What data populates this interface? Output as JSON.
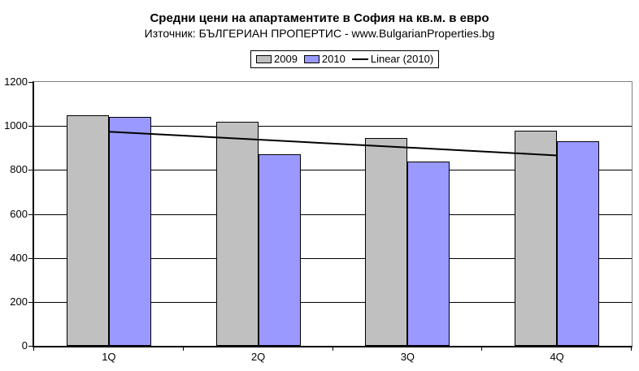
{
  "title": "Средни цени на апартаментите в София на кв.м. в евро",
  "subtitle": "Източник: БЪЛГЕРИАН ПРОПЕРТИС - www.BulgarianProperties.bg",
  "legend": {
    "items": [
      {
        "label": "2009",
        "swatch": "box",
        "color": "#C0C0C0"
      },
      {
        "label": "2010",
        "swatch": "box",
        "color": "#9999FF"
      },
      {
        "label": "Linear (2010)",
        "swatch": "line",
        "color": "#000000"
      }
    ]
  },
  "chart_data": {
    "type": "bar",
    "categories": [
      "1Q",
      "2Q",
      "3Q",
      "4Q"
    ],
    "series": [
      {
        "name": "2009",
        "color": "#C0C0C0",
        "values": [
          1050,
          1020,
          945,
          980
        ]
      },
      {
        "name": "2010",
        "color": "#9999FF",
        "values": [
          1040,
          870,
          840,
          930
        ]
      }
    ],
    "trendline": {
      "name": "Linear (2010)",
      "of_series": "2010",
      "color": "#000000",
      "start_value": 974,
      "end_value": 866
    },
    "title": "Средни цени на апартаментите в София на кв.м. в евро",
    "xlabel": "",
    "ylabel": "",
    "ylim": [
      0,
      1200
    ],
    "ytick_step": 200,
    "grid": true,
    "legend_position": "top",
    "plot_border_color": "#808080",
    "gridline_color": "#000000"
  }
}
